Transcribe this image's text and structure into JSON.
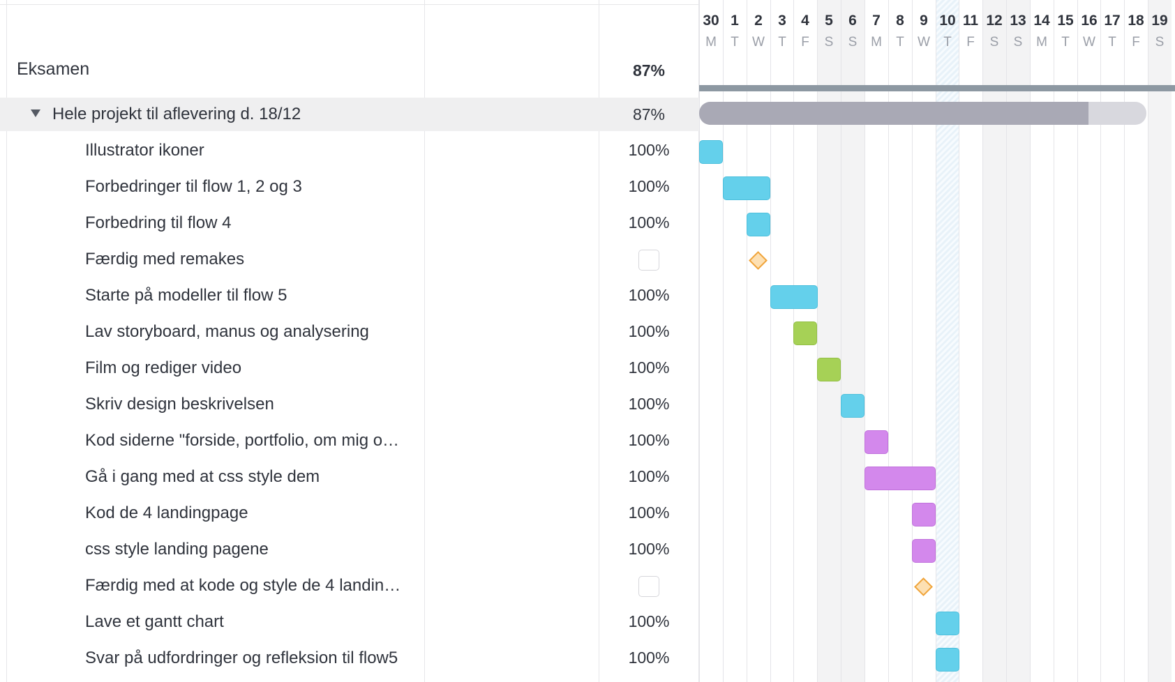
{
  "project": {
    "title": "Eksamen",
    "percent": "87%"
  },
  "group": {
    "name": "Hele projekt til aflevering d. 18/12",
    "percent": "87%",
    "progress": 0.87
  },
  "tasks": [
    {
      "name": "Illustrator ikoner",
      "percent": "100%",
      "type": "task",
      "color": "cyan",
      "start": 0,
      "days": 1
    },
    {
      "name": "Forbedringer til flow 1, 2 og 3",
      "percent": "100%",
      "type": "task",
      "color": "cyan",
      "start": 1,
      "days": 2
    },
    {
      "name": "Forbedring til flow 4",
      "percent": "100%",
      "type": "task",
      "color": "cyan",
      "start": 2,
      "days": 1
    },
    {
      "name": "Færdig med remakes",
      "percent": "",
      "type": "milestone",
      "start": 2
    },
    {
      "name": "Starte på modeller til flow 5",
      "percent": "100%",
      "type": "task",
      "color": "cyan",
      "start": 3,
      "days": 2
    },
    {
      "name": "Lav storyboard, manus og analysering",
      "percent": "100%",
      "type": "task",
      "color": "green",
      "start": 4,
      "days": 1
    },
    {
      "name": "Film og rediger video",
      "percent": "100%",
      "type": "task",
      "color": "green",
      "start": 5,
      "days": 1
    },
    {
      "name": "Skriv design beskrivelsen",
      "percent": "100%",
      "type": "task",
      "color": "cyan",
      "start": 6,
      "days": 1
    },
    {
      "name": "Kod siderne \"forside, portfolio, om mig o…",
      "percent": "100%",
      "type": "task",
      "color": "purple",
      "start": 7,
      "days": 1
    },
    {
      "name": "Gå i gang med at css style dem",
      "percent": "100%",
      "type": "task",
      "color": "purple",
      "start": 7,
      "days": 3
    },
    {
      "name": "Kod de 4 landingpage",
      "percent": "100%",
      "type": "task",
      "color": "purple",
      "start": 9,
      "days": 1
    },
    {
      "name": "css style landing pagene",
      "percent": "100%",
      "type": "task",
      "color": "purple",
      "start": 9,
      "days": 1
    },
    {
      "name": "Færdig med at kode og style de 4 landin…",
      "percent": "",
      "type": "milestone",
      "start": 9
    },
    {
      "name": "Lave et gantt chart",
      "percent": "100%",
      "type": "task",
      "color": "cyan",
      "start": 10,
      "days": 1
    },
    {
      "name": "Svar på udfordringer og refleksion til flow5",
      "percent": "100%",
      "type": "task",
      "color": "cyan",
      "start": 10,
      "days": 1
    }
  ],
  "timeline": {
    "days": [
      {
        "num": "30",
        "letter": "M"
      },
      {
        "num": "1",
        "letter": "T"
      },
      {
        "num": "2",
        "letter": "W"
      },
      {
        "num": "3",
        "letter": "T"
      },
      {
        "num": "4",
        "letter": "F"
      },
      {
        "num": "5",
        "letter": "S",
        "weekend": true
      },
      {
        "num": "6",
        "letter": "S",
        "weekend": true
      },
      {
        "num": "7",
        "letter": "M"
      },
      {
        "num": "8",
        "letter": "T"
      },
      {
        "num": "9",
        "letter": "W"
      },
      {
        "num": "10",
        "letter": "T",
        "today": true
      },
      {
        "num": "11",
        "letter": "F"
      },
      {
        "num": "12",
        "letter": "S",
        "weekend": true
      },
      {
        "num": "13",
        "letter": "S",
        "weekend": true
      },
      {
        "num": "14",
        "letter": "M"
      },
      {
        "num": "15",
        "letter": "T"
      },
      {
        "num": "16",
        "letter": "W"
      },
      {
        "num": "17",
        "letter": "T"
      },
      {
        "num": "18",
        "letter": "F"
      },
      {
        "num": "19",
        "letter": "S",
        "weekend": true
      }
    ],
    "project_span_days": 19,
    "group_span_days": 19
  },
  "colors": {
    "cyan": "#64d0eb",
    "green": "#a6d156",
    "purple": "#d388ec",
    "milestone": "#f0a43a",
    "summary": "#8d98a2"
  }
}
